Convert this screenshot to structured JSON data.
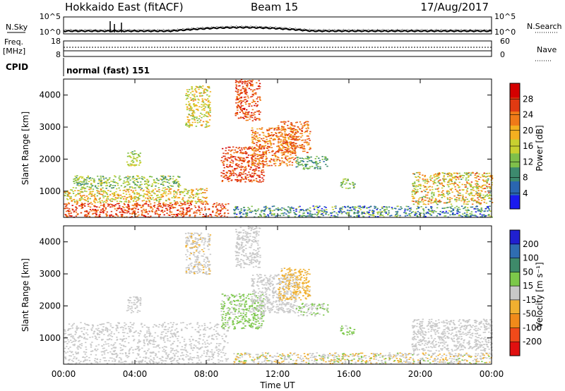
{
  "header": {
    "title": "Hokkaido East (fitACF)",
    "beam": "Beam 15",
    "date": "17/Aug/2017"
  },
  "top_panels": {
    "nsky_label": "N.Sky",
    "nsearch_label": "N.Search",
    "nsky_ticks": [
      "10^5",
      "10^0"
    ],
    "nsearch_ticks": [
      "10^5",
      "10^0"
    ],
    "freq_label": "Freq.",
    "freq_unit": "[MHz]",
    "freq_ticks": [
      "18",
      "8"
    ],
    "nave_label": "Nave",
    "nave_ticks": [
      "60",
      "0"
    ],
    "cpid_label": "CPID",
    "cpid_value": "normal (fast) 151"
  },
  "x_axis": {
    "label": "Time UT",
    "ticks": [
      "00:00",
      "04:00",
      "08:00",
      "12:00",
      "16:00",
      "20:00",
      "00:00"
    ]
  },
  "chart_data": [
    {
      "type": "heatmap",
      "panel": "power",
      "ylabel": "Slant Range [km]",
      "yticks": [
        "1000",
        "2000",
        "3000",
        "4000"
      ],
      "ylim": [
        180,
        4500
      ],
      "xlim_hours": [
        0,
        24
      ],
      "colorbar_label": "Power [dB]",
      "colorbar_ticks": [
        "4",
        "8",
        "12",
        "16",
        "20",
        "24",
        "28"
      ],
      "colorbar_range": [
        0,
        32
      ],
      "colormap": [
        "#1a1aee",
        "#2a66b0",
        "#3d8a6e",
        "#7fbf4a",
        "#c8d030",
        "#f4b020",
        "#f07a18",
        "#e03a12",
        "#d40000"
      ],
      "regions": [
        {
          "t0": 0.0,
          "t1": 9.2,
          "r0": 200,
          "r1": 650,
          "v0": 22,
          "v1": 30
        },
        {
          "t0": 0.0,
          "t1": 8.0,
          "r0": 650,
          "r1": 1100,
          "v0": 12,
          "v1": 24
        },
        {
          "t0": 0.5,
          "t1": 6.5,
          "r0": 1100,
          "r1": 1500,
          "v0": 8,
          "v1": 18
        },
        {
          "t0": 3.5,
          "t1": 4.3,
          "r0": 1800,
          "r1": 2300,
          "v0": 10,
          "v1": 18
        },
        {
          "t0": 6.8,
          "t1": 8.2,
          "r0": 3000,
          "r1": 4300,
          "v0": 12,
          "v1": 22
        },
        {
          "t0": 9.6,
          "t1": 11.0,
          "r0": 3200,
          "r1": 4500,
          "v0": 22,
          "v1": 30
        },
        {
          "t0": 8.8,
          "t1": 11.2,
          "r0": 1300,
          "r1": 2400,
          "v0": 22,
          "v1": 30
        },
        {
          "t0": 10.5,
          "t1": 13.0,
          "r0": 1800,
          "r1": 3000,
          "v0": 18,
          "v1": 28
        },
        {
          "t0": 12.0,
          "t1": 13.8,
          "r0": 2200,
          "r1": 3200,
          "v0": 20,
          "v1": 28
        },
        {
          "t0": 13.0,
          "t1": 14.8,
          "r0": 1700,
          "r1": 2100,
          "v0": 6,
          "v1": 14
        },
        {
          "t0": 15.5,
          "t1": 16.3,
          "r0": 1100,
          "r1": 1400,
          "v0": 8,
          "v1": 16
        },
        {
          "t0": 9.5,
          "t1": 24.0,
          "r0": 200,
          "r1": 550,
          "v0": 2,
          "v1": 16
        },
        {
          "t0": 19.5,
          "t1": 24.0,
          "r0": 600,
          "r1": 1600,
          "v0": 10,
          "v1": 26
        }
      ]
    },
    {
      "type": "heatmap",
      "panel": "velocity",
      "ylabel": "Slant Range [km]",
      "yticks": [
        "1000",
        "2000",
        "3000",
        "4000"
      ],
      "ylim": [
        180,
        4500
      ],
      "xlim_hours": [
        0,
        24
      ],
      "colorbar_label": "Velocity [m s⁻¹]",
      "colorbar_ticks": [
        "200",
        "100",
        "50",
        "15",
        "-15",
        "-50",
        "-100",
        "-200"
      ],
      "colorbar_range": [
        -250,
        250
      ],
      "colormap": [
        "#2020d0",
        "#2f6db2",
        "#3e8a6a",
        "#7cc84a",
        "#c8c8c8",
        "#f0b030",
        "#f08a1a",
        "#f04a1a",
        "#e01010"
      ],
      "regions": [
        {
          "t0": 0.0,
          "t1": 9.2,
          "r0": 200,
          "r1": 1500,
          "v0": -15,
          "v1": 15
        },
        {
          "t0": 3.5,
          "t1": 4.3,
          "r0": 1800,
          "r1": 2300,
          "v0": -20,
          "v1": 20
        },
        {
          "t0": 6.8,
          "t1": 8.2,
          "r0": 3000,
          "r1": 4300,
          "v0": -40,
          "v1": 10
        },
        {
          "t0": 9.6,
          "t1": 11.0,
          "r0": 3200,
          "r1": 4500,
          "v0": -15,
          "v1": 15
        },
        {
          "t0": 8.8,
          "t1": 11.2,
          "r0": 1300,
          "r1": 2400,
          "v0": 15,
          "v1": 60
        },
        {
          "t0": 10.5,
          "t1": 13.0,
          "r0": 1800,
          "r1": 3000,
          "v0": -15,
          "v1": 15
        },
        {
          "t0": 12.0,
          "t1": 13.8,
          "r0": 2200,
          "r1": 3200,
          "v0": -80,
          "v1": -20
        },
        {
          "t0": 13.0,
          "t1": 14.8,
          "r0": 1700,
          "r1": 2100,
          "v0": 15,
          "v1": 40
        },
        {
          "t0": 15.5,
          "t1": 16.3,
          "r0": 1100,
          "r1": 1400,
          "v0": 20,
          "v1": 80
        },
        {
          "t0": 9.5,
          "t1": 24.0,
          "r0": 200,
          "r1": 550,
          "v0": -60,
          "v1": 40
        },
        {
          "t0": 19.5,
          "t1": 24.0,
          "r0": 600,
          "r1": 1600,
          "v0": -15,
          "v1": 15
        }
      ]
    }
  ]
}
